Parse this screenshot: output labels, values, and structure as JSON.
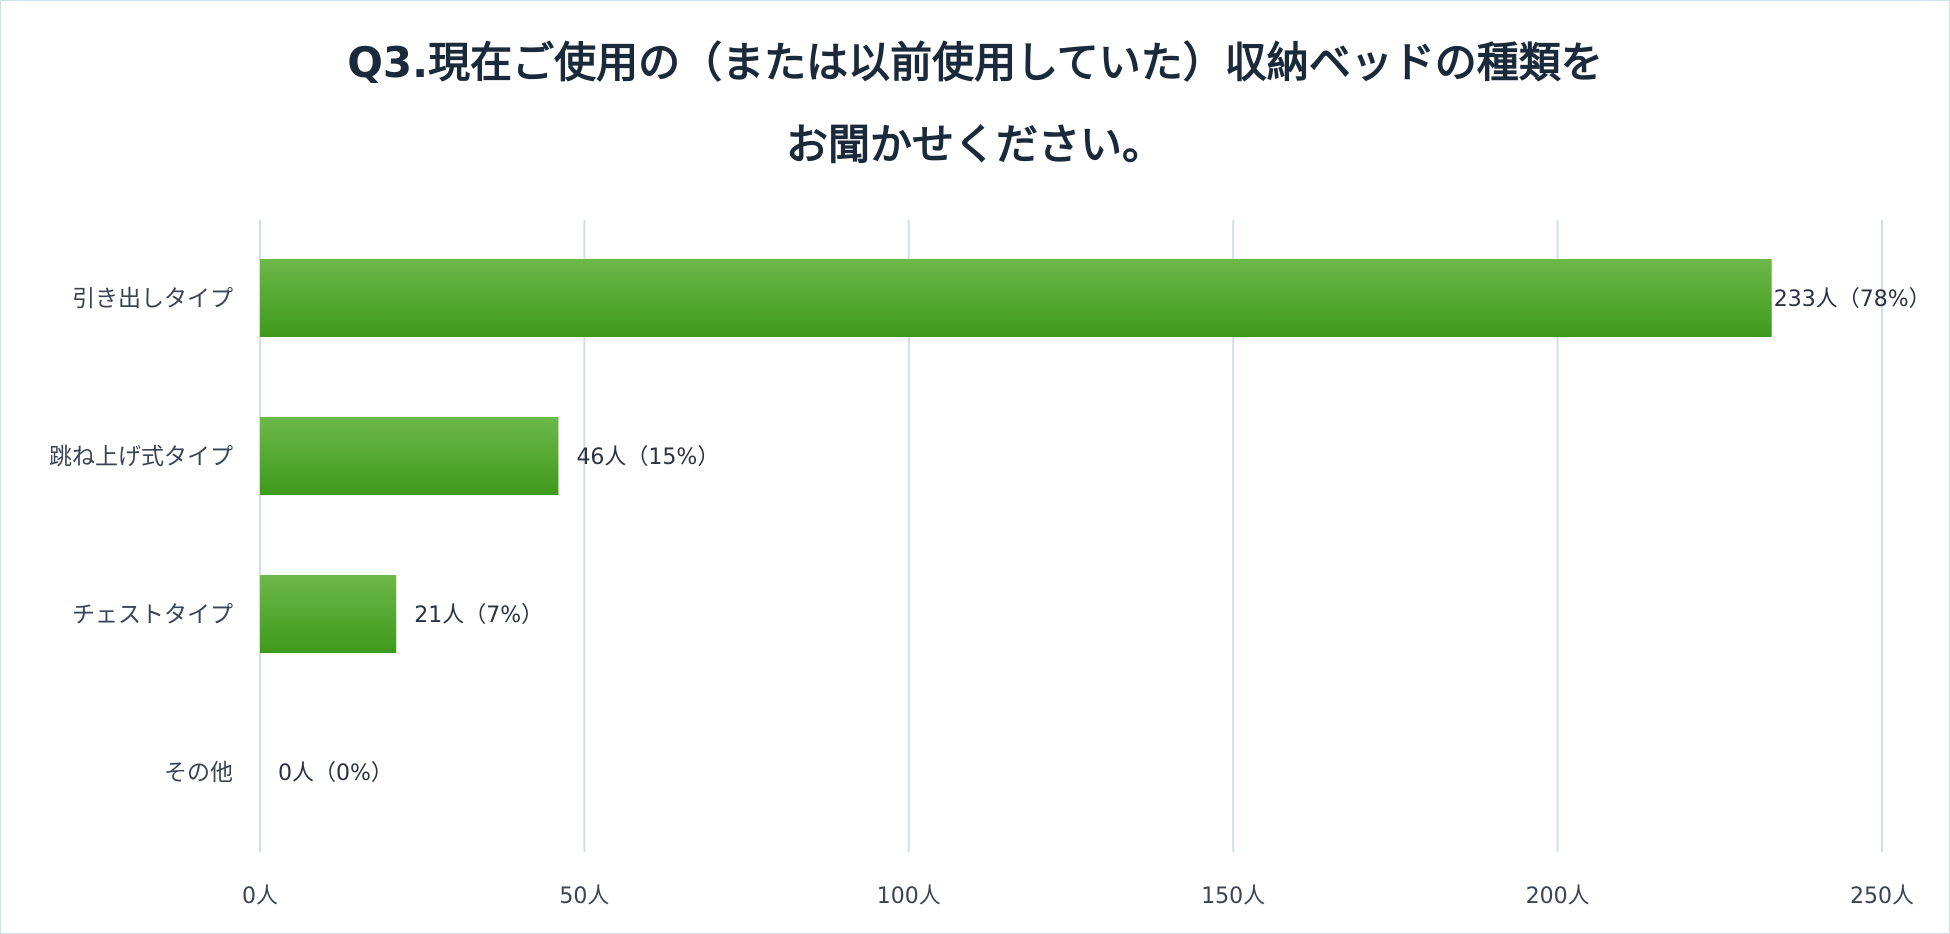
{
  "chart_data": {
    "type": "bar",
    "orientation": "horizontal",
    "title_lines": [
      "Q3.現在ご使用の（または以前使用していた）収納ベッドの種類を",
      "お聞かせください。"
    ],
    "categories": [
      "引き出しタイプ",
      "跳ね上げ式タイプ",
      "チェストタイプ",
      "その他"
    ],
    "values": [
      233,
      46,
      21,
      0
    ],
    "percentages": [
      78,
      15,
      7,
      0
    ],
    "data_labels": [
      "233人（78%）",
      "46人（15%）",
      "21人（7%）",
      "0人（0%）"
    ],
    "x_ticks": [
      0,
      50,
      100,
      150,
      200,
      250
    ],
    "x_tick_labels": [
      "0人",
      "50人",
      "100人",
      "150人",
      "200人",
      "250人"
    ],
    "xlim": [
      0,
      250
    ],
    "grid": true,
    "legend": "none",
    "colors": {
      "bar_top": "#6db84a",
      "bar_bottom": "#3f9a1c",
      "grid": "#cfe0ea",
      "title": "#1b2a3a",
      "text": "#3a4452"
    }
  }
}
